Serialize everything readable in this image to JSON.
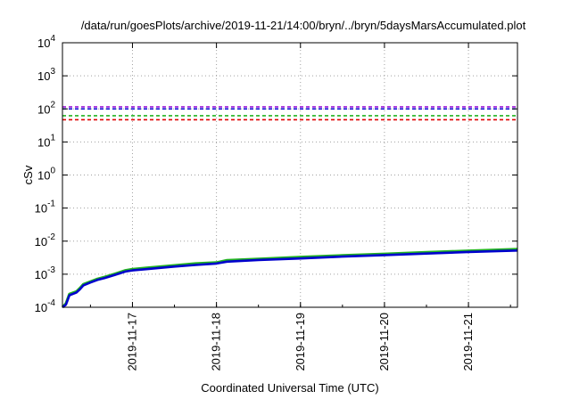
{
  "chart_data": {
    "type": "line",
    "title": "/data/run/goesPlots/archive/2019-11-21/14:00/bryn/../bryn/5daysMarsAccumulated.plot",
    "xlabel": "Coordinated Universal Time (UTC)",
    "ylabel": "cSv",
    "y_scale": "log",
    "ylim": [
      0.0001,
      10000
    ],
    "y_ticks": [
      {
        "base": "10",
        "exp": "-4"
      },
      {
        "base": "10",
        "exp": "-3"
      },
      {
        "base": "10",
        "exp": "-2"
      },
      {
        "base": "10",
        "exp": "-1"
      },
      {
        "base": "10",
        "exp": "0"
      },
      {
        "base": "10",
        "exp": "1"
      },
      {
        "base": "10",
        "exp": "2"
      },
      {
        "base": "10",
        "exp": "3"
      },
      {
        "base": "10",
        "exp": "4"
      }
    ],
    "xlim": [
      "2019-11-16 04:00",
      "2019-11-21 14:00"
    ],
    "x_ticks": [
      "2019-11-17",
      "2019-11-18",
      "2019-11-19",
      "2019-11-20",
      "2019-11-21"
    ],
    "grid": true,
    "thresholds": [
      {
        "value": 115,
        "color": "#9400d3",
        "style": "dashed"
      },
      {
        "value": 100,
        "color": "#0000cd",
        "style": "dashed"
      },
      {
        "value": 62,
        "color": "#22b222",
        "style": "dashed"
      },
      {
        "value": 47,
        "color": "#e00000",
        "style": "dashed"
      }
    ],
    "series": [
      {
        "color": "#22b222",
        "x": [
          "2019-11-16 04:00",
          "2019-11-16 05:00",
          "2019-11-16 06:00",
          "2019-11-16 08:00",
          "2019-11-16 09:00",
          "2019-11-16 10:00",
          "2019-11-16 12:00",
          "2019-11-16 14:00",
          "2019-11-16 16:00",
          "2019-11-16 18:00",
          "2019-11-16 22:00",
          "2019-11-17 00:00",
          "2019-11-17 04:00",
          "2019-11-17 12:00",
          "2019-11-17 18:00",
          "2019-11-18 00:00",
          "2019-11-18 03:00",
          "2019-11-18 12:00",
          "2019-11-19 00:00",
          "2019-11-19 12:00",
          "2019-11-20 00:00",
          "2019-11-20 12:00",
          "2019-11-21 00:00",
          "2019-11-21 14:00"
        ],
        "y": [
          0.0001,
          0.00013,
          0.00025,
          0.0003,
          0.00038,
          0.0005,
          0.0006,
          0.00072,
          0.00082,
          0.00095,
          0.0013,
          0.00142,
          0.00155,
          0.00185,
          0.0021,
          0.00225,
          0.00265,
          0.0029,
          0.0033,
          0.0037,
          0.0041,
          0.0046,
          0.0051,
          0.0057
        ]
      },
      {
        "color": "#0000cd",
        "x": [
          "2019-11-16 04:00",
          "2019-11-16 05:00",
          "2019-11-16 06:00",
          "2019-11-16 08:00",
          "2019-11-16 09:00",
          "2019-11-16 10:00",
          "2019-11-16 12:00",
          "2019-11-16 14:00",
          "2019-11-16 16:00",
          "2019-11-16 18:00",
          "2019-11-16 22:00",
          "2019-11-17 00:00",
          "2019-11-17 04:00",
          "2019-11-17 12:00",
          "2019-11-17 18:00",
          "2019-11-18 00:00",
          "2019-11-18 03:00",
          "2019-11-18 12:00",
          "2019-11-19 00:00",
          "2019-11-19 12:00",
          "2019-11-20 00:00",
          "2019-11-20 12:00",
          "2019-11-21 00:00",
          "2019-11-21 14:00"
        ],
        "y": [
          0.0001,
          0.00012,
          0.00023,
          0.00028,
          0.00035,
          0.00046,
          0.00056,
          0.00067,
          0.00076,
          0.00088,
          0.0012,
          0.0013,
          0.00142,
          0.0017,
          0.0019,
          0.0021,
          0.0024,
          0.0027,
          0.003,
          0.0034,
          0.0038,
          0.0042,
          0.0047,
          0.0052
        ]
      }
    ]
  }
}
